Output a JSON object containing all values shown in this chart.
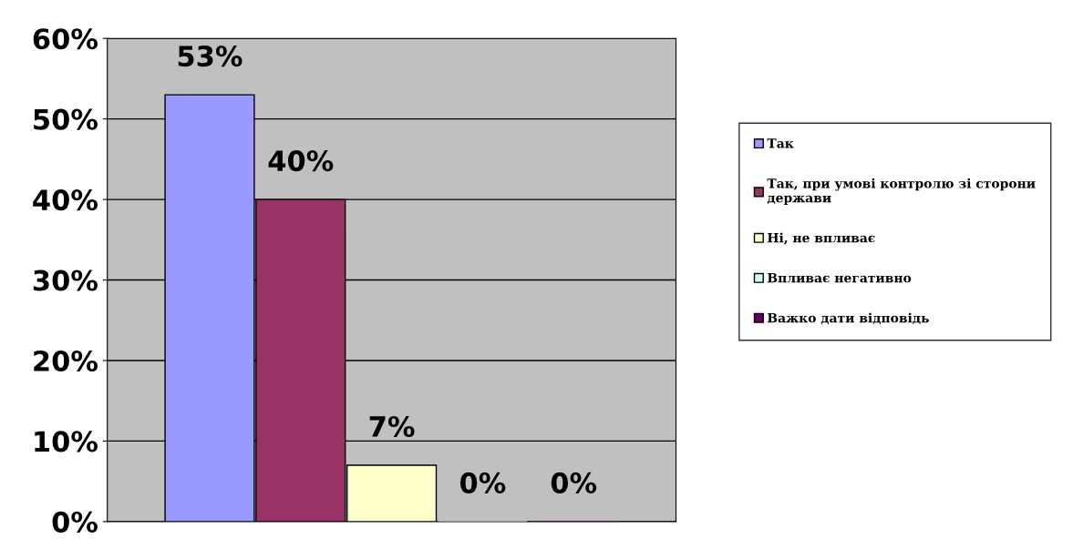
{
  "chart_data": {
    "type": "bar",
    "categories": [
      null
    ],
    "series": [
      {
        "name": "Так",
        "color": "#9999ff",
        "values": [
          53
        ],
        "value_labels": [
          "53%"
        ]
      },
      {
        "name": "Так, при умові контролю зі сторони держави",
        "color": "#993366",
        "values": [
          40
        ],
        "value_labels": [
          "40%"
        ]
      },
      {
        "name": "Ні, не впливає",
        "color": "#ffffcc",
        "values": [
          7
        ],
        "value_labels": [
          "7%"
        ]
      },
      {
        "name": "Впливає негативно",
        "color": "#ccffff",
        "values": [
          0
        ],
        "value_labels": [
          "0%"
        ]
      },
      {
        "name": "Важко дати відповідь",
        "color": "#660066",
        "values": [
          0
        ],
        "value_labels": [
          "0%"
        ]
      }
    ],
    "ylim": [
      0,
      60
    ],
    "yticks": [
      {
        "value": 0,
        "label": "0%"
      },
      {
        "value": 10,
        "label": "10%"
      },
      {
        "value": 20,
        "label": "20%"
      },
      {
        "value": 30,
        "label": "30%"
      },
      {
        "value": 40,
        "label": "40%"
      },
      {
        "value": 50,
        "label": "50%"
      },
      {
        "value": 60,
        "label": "60%"
      }
    ],
    "grid": "y",
    "legend": "right"
  }
}
